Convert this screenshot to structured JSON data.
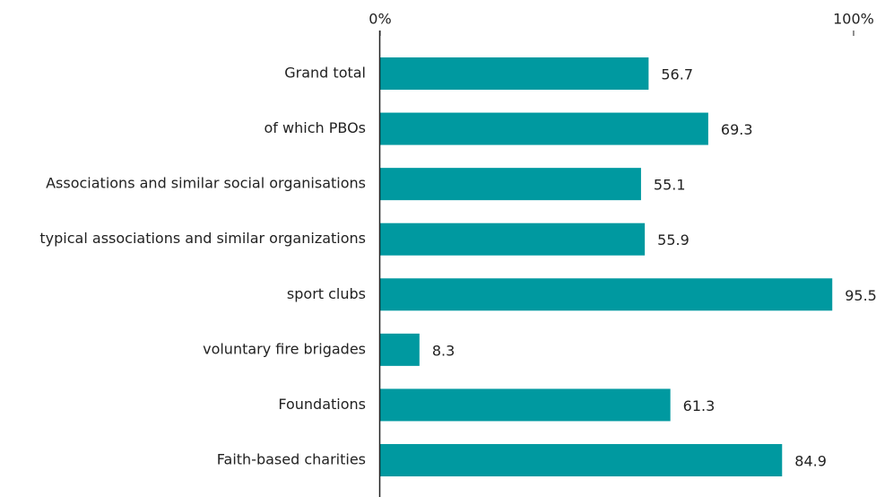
{
  "chart_data": {
    "type": "bar",
    "orientation": "horizontal",
    "categories": [
      "Grand total",
      "of which PBOs",
      "Associations and similar social organisations",
      "typical associations and similar organizations",
      "sport clubs",
      "voluntary fire brigades",
      "Foundations",
      "Faith-based charities"
    ],
    "values": [
      56.7,
      69.3,
      55.1,
      55.9,
      95.5,
      8.3,
      61.3,
      84.9
    ],
    "color": "#0099a0",
    "xlim": [
      0,
      100
    ],
    "xticks": [
      {
        "value": 0,
        "label": "0%"
      },
      {
        "value": 100,
        "label": "100%"
      }
    ]
  }
}
